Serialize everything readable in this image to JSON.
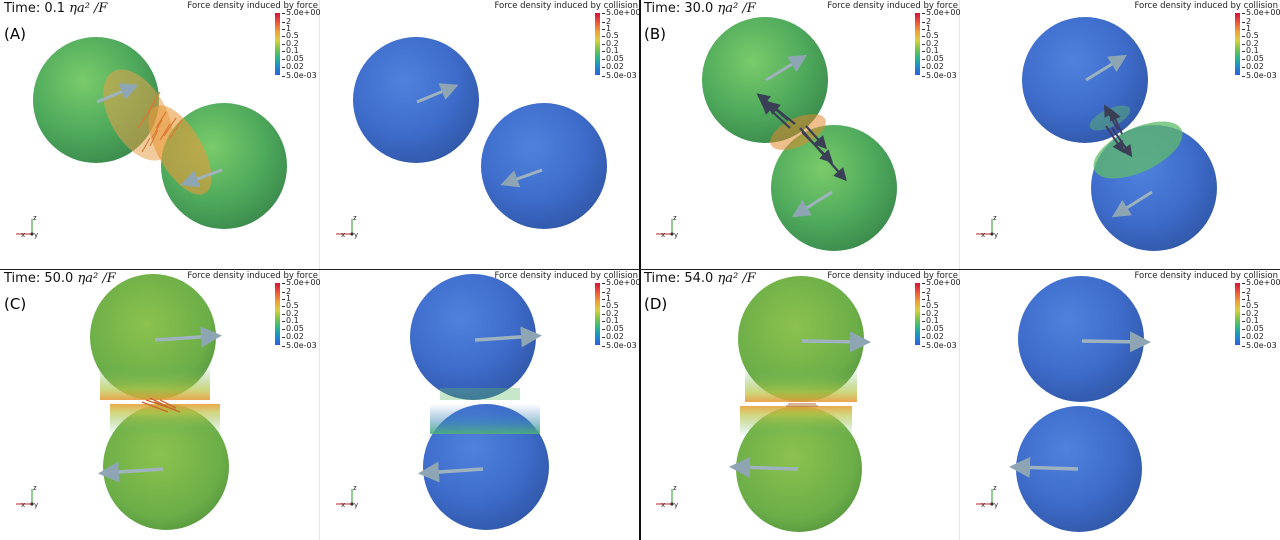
{
  "colorbar": {
    "ticks": [
      "5.0e+00",
      "2",
      "1",
      "0.5",
      "0.2",
      "0.1",
      "0.05",
      "0.02",
      "5.0e-03"
    ]
  },
  "axes_labels": {
    "x": "x",
    "y": "y",
    "z": "z"
  },
  "panels": [
    {
      "id": "A",
      "label": "(A)",
      "time_value": "0.1",
      "time_prefix": "Time:",
      "time_unit": "ηa² /F",
      "left_title": "Force density induced by force",
      "right_title": "Force density induced by collision"
    },
    {
      "id": "B",
      "label": "(B)",
      "time_value": "30.0",
      "time_prefix": "Time:",
      "time_unit": "ηa² /F",
      "left_title": "Force density induced by force",
      "right_title": "Force density induced by collision"
    },
    {
      "id": "C",
      "label": "(C)",
      "time_value": "50.0",
      "time_prefix": "Time:",
      "time_unit": "ηa² /F",
      "left_title": "Force density induced by force",
      "right_title": "Force density induced by collision"
    },
    {
      "id": "D",
      "label": "(D)",
      "time_value": "54.0",
      "time_prefix": "Time:",
      "time_unit": "ηa² /F",
      "left_title": "Force density induced by force",
      "right_title": "Force density induced by collision"
    }
  ],
  "colors": {
    "sphere_green": "#5ab565",
    "sphere_blue": "#3e6fcf",
    "contact_orange": "#e8823a",
    "arrow_gray": "#8ea6b4"
  }
}
